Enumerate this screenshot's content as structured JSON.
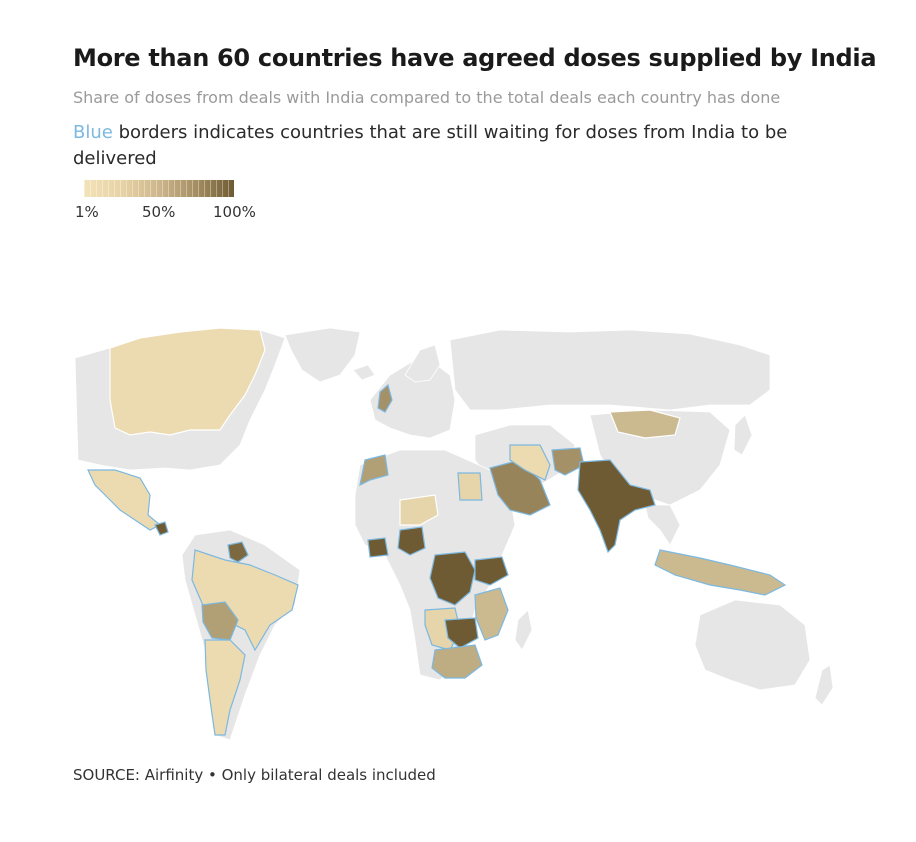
{
  "header": {
    "title": "More than 60 countries have agreed doses supplied by India",
    "subtitle": "Share of doses from deals with India compared to the total deals each country has done",
    "note_highlight": "Blue",
    "note_rest": " borders indicates countries that are still waiting for doses from India to be delivered"
  },
  "legend": {
    "min_label": "1%",
    "mid_label": "50%",
    "max_label": "100%",
    "color_low": "#f3e2b8",
    "color_high": "#6f5b33"
  },
  "map": {
    "base_color": "#e6e6e6",
    "waiting_border_color": "#7cb8e0",
    "regions": [
      {
        "id": "canada",
        "share": 0.05,
        "waiting": false
      },
      {
        "id": "mexico-central-america",
        "share": 0.05,
        "waiting": true
      },
      {
        "id": "nicaragua",
        "share": 1.0,
        "waiting": true
      },
      {
        "id": "guyana-suriname",
        "share": 0.9,
        "waiting": true
      },
      {
        "id": "south-america",
        "share": 0.05,
        "waiting": true
      },
      {
        "id": "bolivia-paraguay",
        "share": 0.5,
        "waiting": true
      },
      {
        "id": "argentina-chile",
        "share": 0.05,
        "waiting": true
      },
      {
        "id": "uk",
        "share": 0.6,
        "waiting": true
      },
      {
        "id": "morocco",
        "share": 0.5,
        "waiting": true
      },
      {
        "id": "egypt",
        "share": 0.1,
        "waiting": true
      },
      {
        "id": "saudi-arabia",
        "share": 0.7,
        "waiting": true
      },
      {
        "id": "iran",
        "share": 0.05,
        "waiting": true
      },
      {
        "id": "afghanistan",
        "share": 0.6,
        "waiting": true
      },
      {
        "id": "india-bangladesh",
        "share": 1.0,
        "waiting": true
      },
      {
        "id": "mongolia",
        "share": 0.3,
        "waiting": false
      },
      {
        "id": "niger",
        "share": 0.1,
        "waiting": false
      },
      {
        "id": "ghana-cote-divoire",
        "share": 1.0,
        "waiting": true
      },
      {
        "id": "nigeria",
        "share": 1.0,
        "waiting": true
      },
      {
        "id": "dr-congo",
        "share": 1.0,
        "waiting": true
      },
      {
        "id": "uganda-kenya",
        "share": 1.0,
        "waiting": true
      },
      {
        "id": "tanzania-mozambique",
        "share": 0.3,
        "waiting": true
      },
      {
        "id": "angola-namibia",
        "share": 0.1,
        "waiting": true
      },
      {
        "id": "zambia-zimbabwe",
        "share": 1.0,
        "waiting": true
      },
      {
        "id": "south-africa",
        "share": 0.4,
        "waiting": true
      },
      {
        "id": "indonesia-philippines",
        "share": 0.3,
        "waiting": true
      }
    ]
  },
  "source": "SOURCE: Airfinity • Only bilateral deals included"
}
